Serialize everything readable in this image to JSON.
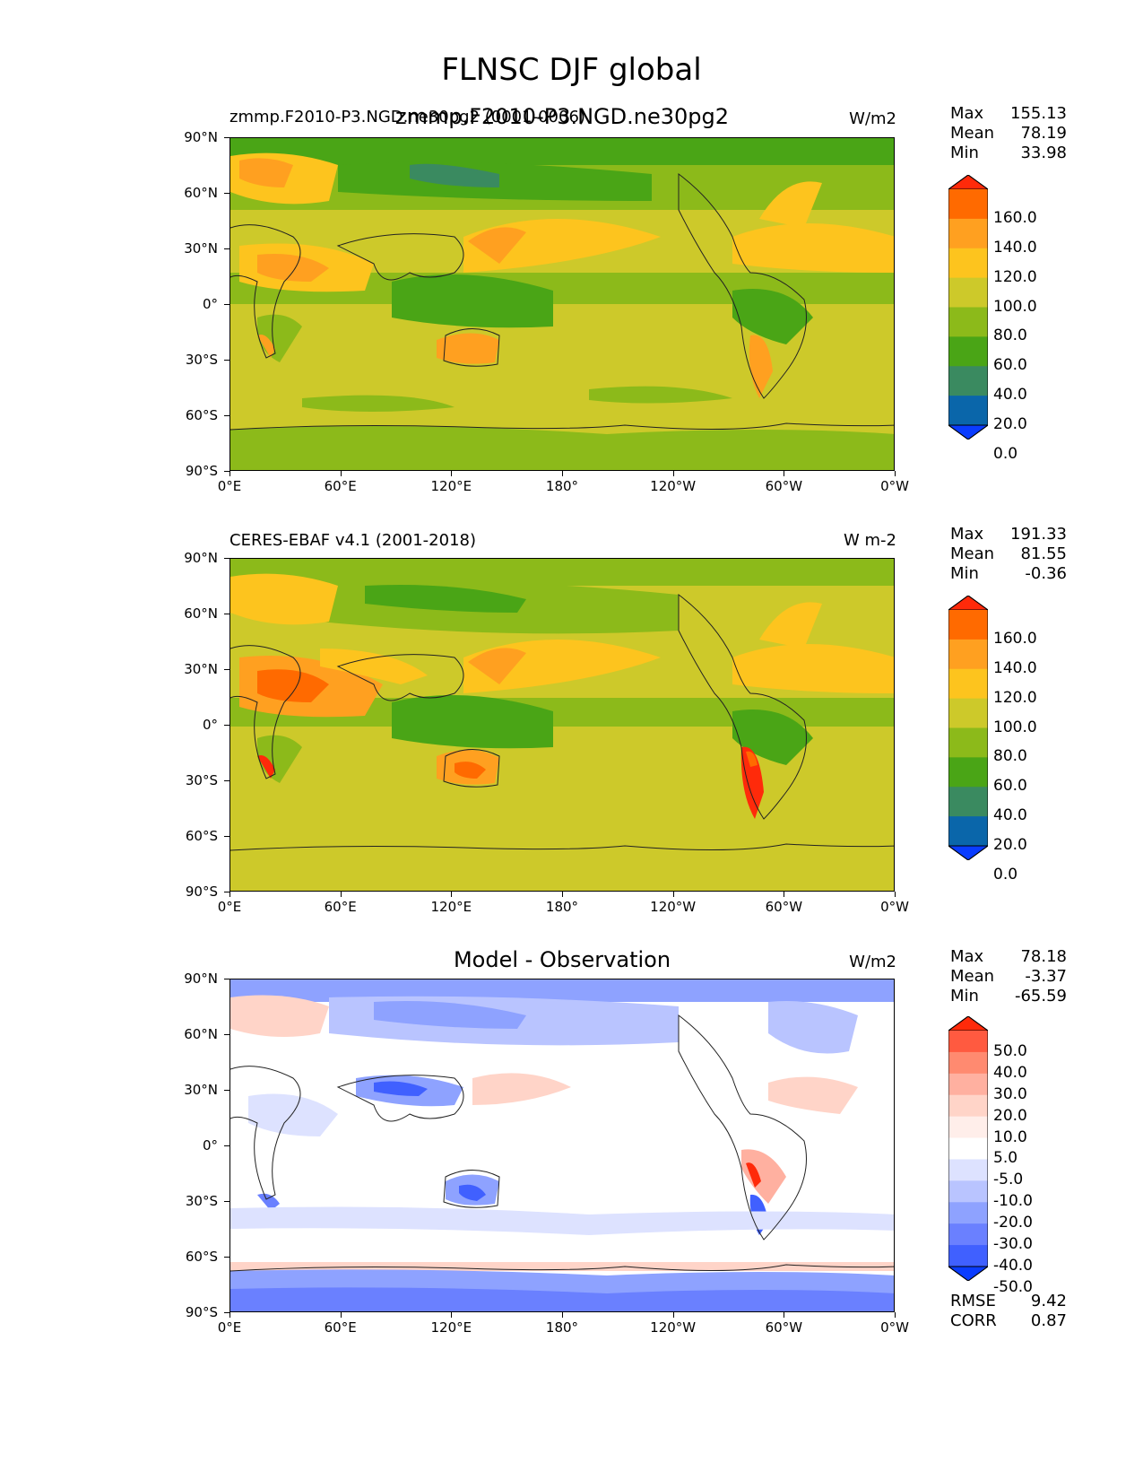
{
  "figure": {
    "title": "FLNSC DJF global"
  },
  "axes": {
    "lat_labels": [
      "90°N",
      "60°N",
      "30°N",
      "0°",
      "30°S",
      "60°S",
      "90°S"
    ],
    "lon_labels": [
      "0°E",
      "60°E",
      "120°E",
      "180°",
      "120°W",
      "60°W",
      "0°W"
    ]
  },
  "panels": [
    {
      "left_title": "zmmp.F2010-P3.NGD.ne30pg2 (0001-0006)",
      "center_title": "zmmp.F2010-P3.NGD.ne30pg2",
      "units": "W/m2",
      "stats": {
        "max_label": "Max",
        "max": "155.13",
        "mean_label": "Mean",
        "mean": "78.19",
        "min_label": "Min",
        "min": "33.98"
      },
      "colorbar": {
        "labels": [
          "160.0",
          "140.0",
          "120.0",
          "100.0",
          "80.0",
          "60.0",
          "40.0",
          "20.0",
          "0.0"
        ],
        "colors": [
          "#ff2a0a",
          "#ff6a00",
          "#ffa020",
          "#fdc41e",
          "#cdc92a",
          "#8cba1a",
          "#4aa516",
          "#3a8a60",
          "#0a66aa",
          "#0a3cff"
        ]
      }
    },
    {
      "left_title": "CERES-EBAF v4.1 (2001-2018)",
      "center_title": "",
      "units": "W m-2",
      "stats": {
        "max_label": "Max",
        "max": "191.33",
        "mean_label": "Mean",
        "mean": "81.55",
        "min_label": "Min",
        "min": "-0.36"
      },
      "colorbar": {
        "labels": [
          "160.0",
          "140.0",
          "120.0",
          "100.0",
          "80.0",
          "60.0",
          "40.0",
          "20.0",
          "0.0"
        ],
        "colors": [
          "#ff2a0a",
          "#ff6a00",
          "#ffa020",
          "#fdc41e",
          "#cdc92a",
          "#8cba1a",
          "#4aa516",
          "#3a8a60",
          "#0a66aa",
          "#0a3cff"
        ]
      }
    },
    {
      "left_title": "",
      "center_title": "Model - Observation",
      "units": "W/m2",
      "stats": {
        "max_label": "Max",
        "max": "78.18",
        "mean_label": "Mean",
        "mean": "-3.37",
        "min_label": "Min",
        "min": "-65.59"
      },
      "colorbar": {
        "labels": [
          "50.0",
          "40.0",
          "30.0",
          "20.0",
          "10.0",
          "5.0",
          "-5.0",
          "-10.0",
          "-20.0",
          "-30.0",
          "-40.0",
          "-50.0"
        ],
        "colors": [
          "#ff2a0a",
          "#ff5a40",
          "#ff8a70",
          "#ffb0a0",
          "#ffd4c8",
          "#ffeeea",
          "#ffffff",
          "#dde2ff",
          "#b9c4ff",
          "#8ea2ff",
          "#6a80ff",
          "#4060ff",
          "#0a3cff"
        ]
      },
      "metrics": {
        "rmse_label": "RMSE",
        "rmse": "9.42",
        "corr_label": "CORR",
        "corr": "0.87"
      }
    }
  ]
}
